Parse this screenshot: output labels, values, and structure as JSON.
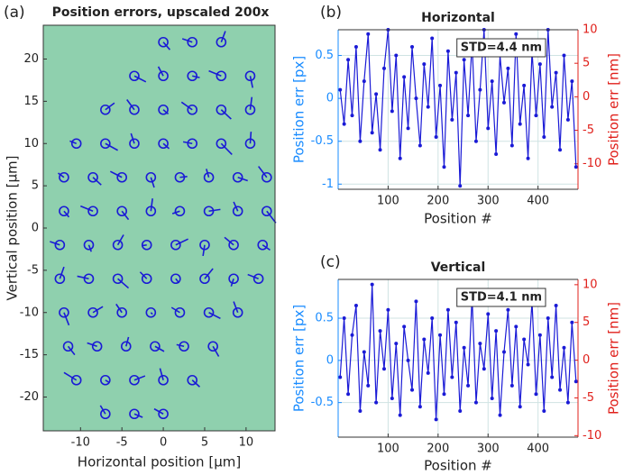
{
  "chart_data": [
    {
      "type": "scatter",
      "panel_label": "(a)",
      "title": "Position errors, upscaled 200x",
      "xlabel": "Horizontal position [µm]",
      "ylabel": "Vertical position [µm]",
      "xlim": [
        -14.5,
        13.5
      ],
      "ylim": [
        -24,
        24
      ],
      "xticks": [
        -10,
        -5,
        0,
        5,
        10
      ],
      "yticks": [
        -20,
        -15,
        -10,
        -5,
        0,
        5,
        10,
        15,
        20
      ],
      "color": "#1a1ad6",
      "background": "#8fd0ae",
      "x": [
        0,
        3.5,
        7,
        -3.5,
        0,
        3.5,
        7,
        10.5,
        -7,
        -3.5,
        0,
        3.5,
        7,
        10.5,
        -10.5,
        -7,
        -3.5,
        0,
        3.5,
        7,
        10.5,
        -12,
        -8.5,
        -5,
        -1.5,
        2,
        5.5,
        9,
        12.5,
        -12,
        -8.5,
        -5,
        -1.5,
        2,
        5.5,
        9,
        12.5,
        -12.5,
        -9,
        -5.5,
        -2,
        1.5,
        5,
        8.5,
        12,
        -12.5,
        -9,
        -5.5,
        -2,
        1.5,
        5,
        8.5,
        11.5,
        -12,
        -8.5,
        -5,
        -1.5,
        2,
        5.5,
        9,
        -11.5,
        -8,
        -4.5,
        -1,
        2.5,
        6,
        -10.5,
        -7,
        -3.5,
        0,
        3.5,
        -7,
        -3.5,
        0
      ],
      "y": [
        22,
        22,
        22,
        18,
        18,
        18,
        18,
        18,
        14,
        14,
        14,
        14,
        14,
        14,
        10,
        10,
        10,
        10,
        10,
        10,
        10,
        6,
        6,
        6,
        6,
        6,
        6,
        6,
        6,
        2,
        2,
        2,
        2,
        2,
        2,
        2,
        2,
        -2,
        -2,
        -2,
        -2,
        -2,
        -2,
        -2,
        -2,
        -6,
        -6,
        -6,
        -6,
        -6,
        -6,
        -6,
        -6,
        -10,
        -10,
        -10,
        -10,
        -10,
        -10,
        -10,
        -14,
        -14,
        -14,
        -14,
        -14,
        -14,
        -18,
        -18,
        -18,
        -18,
        -18,
        -22,
        -22,
        -22
      ],
      "u": [
        0.8,
        -1.2,
        0.5,
        1.4,
        -0.6,
        0.9,
        -1.5,
        0.3,
        1.1,
        -0.9,
        0.6,
        -1.3,
        1.2,
        0.2,
        -0.8,
        1.5,
        -0.4,
        0.7,
        -1.1,
        1.3,
        0.1,
        -0.7,
        1.0,
        -1.4,
        0.4,
        0.9,
        -0.3,
        1.2,
        -1.0,
        0.6,
        -1.5,
        0.8,
        0.2,
        -0.9,
        1.4,
        -0.5,
        1.1,
        -1.2,
        0.3,
        0.7,
        -0.6,
        1.5,
        -0.2,
        -1.1,
        0.9,
        0.5,
        -1.4,
        1.3,
        -0.8,
        0.4,
        1.0,
        -0.3,
        -1.3,
        0.6,
        1.2,
        -0.7,
        0.2,
        -1.0,
        1.4,
        -0.5,
        0.8,
        -1.2,
        0.3,
        1.1,
        -0.9,
        0.7,
        -1.5,
        0.5,
        1.3,
        -0.4,
        0.9,
        -0.6,
        1.0,
        -1.1
      ],
      "v": [
        -0.9,
        0.4,
        1.3,
        -0.7,
        1.1,
        -0.2,
        0.6,
        -1.4,
        0.8,
        1.2,
        -0.5,
        0.9,
        -1.1,
        1.5,
        0.3,
        -0.8,
        1.2,
        -0.6,
        0.2,
        -1.3,
        1.4,
        0.5,
        -0.9,
        0.7,
        -1.2,
        0.1,
        1.0,
        -0.4,
        1.3,
        -0.7,
        0.6,
        -1.0,
        1.5,
        -0.3,
        0.2,
        1.1,
        -1.4,
        0.4,
        -0.8,
        1.2,
        -0.1,
        0.7,
        -1.3,
        0.9,
        -0.6,
        1.4,
        0.3,
        -1.1,
        0.8,
        -0.5,
        1.2,
        -0.9,
        0.5,
        -1.5,
        0.7,
        1.0,
        -0.2,
        0.6,
        -0.7,
        1.3,
        -1.0,
        0.4,
        1.1,
        -0.6,
        0.2,
        -1.2,
        0.9,
        -0.3,
        0.5,
        1.4,
        -0.8,
        1.0,
        -0.4,
        0.6
      ]
    },
    {
      "type": "line",
      "panel_label": "(b)",
      "title": "Horizontal",
      "annotation": "STD=4.4 nm",
      "xlabel": "Position #",
      "ylabel": "Position err [px]",
      "y2label": "Position err [nm]",
      "xlim": [
        0,
        480
      ],
      "ylim": [
        -1.06,
        0.8
      ],
      "y2lim": [
        -13.8,
        10
      ],
      "xticks": [
        100,
        200,
        300,
        400
      ],
      "yticks": [
        -1,
        -0.5,
        0,
        0.5
      ],
      "y2ticks": [
        -10,
        -5,
        0,
        5,
        10
      ],
      "grid": true,
      "ycolor": "#1a8cff",
      "y2color": "#e0201b",
      "series": [
        {
          "color": "#1a1ad6",
          "x": [
            4,
            12,
            20,
            28,
            36,
            44,
            52,
            60,
            68,
            76,
            84,
            92,
            100,
            108,
            116,
            124,
            132,
            140,
            148,
            156,
            164,
            172,
            180,
            188,
            196,
            204,
            212,
            220,
            228,
            236,
            244,
            252,
            260,
            268,
            276,
            284,
            292,
            300,
            308,
            316,
            324,
            332,
            340,
            348,
            356,
            364,
            372,
            380,
            388,
            396,
            404,
            412,
            420,
            428,
            436,
            444,
            452,
            460,
            468,
            476
          ],
          "values": [
            0.1,
            -0.3,
            0.45,
            -0.2,
            0.6,
            -0.5,
            0.2,
            0.75,
            -0.4,
            0.05,
            -0.6,
            0.35,
            0.8,
            -0.15,
            0.5,
            -0.7,
            0.25,
            -0.35,
            0.6,
            0.0,
            -0.55,
            0.4,
            -0.1,
            0.7,
            -0.45,
            0.15,
            -0.8,
            0.55,
            -0.25,
            0.3,
            -1.02,
            0.45,
            -0.2,
            0.65,
            -0.5,
            0.1,
            0.8,
            -0.35,
            0.2,
            -0.65,
            0.5,
            -0.05,
            0.35,
            -0.55,
            0.75,
            -0.3,
            0.15,
            -0.7,
            0.55,
            -0.2,
            0.4,
            -0.45,
            0.8,
            -0.1,
            0.3,
            -0.6,
            0.5,
            -0.25,
            0.2,
            -0.8
          ]
        }
      ]
    },
    {
      "type": "line",
      "panel_label": "(c)",
      "title": "Vertical",
      "annotation": "STD=4.1 nm",
      "xlabel": "Position #",
      "ylabel": "Position err [px]",
      "y2label": "Position err [nm]",
      "xlim": [
        0,
        480
      ],
      "ylim": [
        -0.91,
        0.96
      ],
      "y2lim": [
        -10.2,
        10.7
      ],
      "xticks": [
        100,
        200,
        300,
        400
      ],
      "yticks": [
        -0.5,
        0,
        0.5
      ],
      "y2ticks": [
        -10,
        -5,
        0,
        5,
        10
      ],
      "grid": true,
      "ycolor": "#1a8cff",
      "y2color": "#e0201b",
      "series": [
        {
          "color": "#1a1ad6",
          "x": [
            4,
            12,
            20,
            28,
            36,
            44,
            52,
            60,
            68,
            76,
            84,
            92,
            100,
            108,
            116,
            124,
            132,
            140,
            148,
            156,
            164,
            172,
            180,
            188,
            196,
            204,
            212,
            220,
            228,
            236,
            244,
            252,
            260,
            268,
            276,
            284,
            292,
            300,
            308,
            316,
            324,
            332,
            340,
            348,
            356,
            364,
            372,
            380,
            388,
            396,
            404,
            412,
            420,
            428,
            436,
            444,
            452,
            460,
            468,
            476
          ],
          "values": [
            -0.2,
            0.5,
            -0.4,
            0.3,
            0.65,
            -0.6,
            0.1,
            -0.3,
            0.9,
            -0.5,
            0.35,
            -0.1,
            0.6,
            -0.45,
            0.2,
            -0.65,
            0.4,
            0.0,
            -0.35,
            0.7,
            -0.55,
            0.25,
            -0.15,
            0.5,
            -0.7,
            0.3,
            -0.4,
            0.6,
            -0.2,
            0.45,
            -0.6,
            0.15,
            -0.3,
            0.75,
            -0.5,
            0.2,
            -0.1,
            0.55,
            -0.45,
            0.35,
            -0.65,
            0.1,
            0.6,
            -0.3,
            0.4,
            -0.55,
            0.25,
            -0.05,
            0.7,
            -0.4,
            0.3,
            -0.6,
            0.5,
            -0.2,
            0.65,
            -0.35,
            0.15,
            -0.5,
            0.45,
            -0.25
          ]
        }
      ]
    }
  ]
}
